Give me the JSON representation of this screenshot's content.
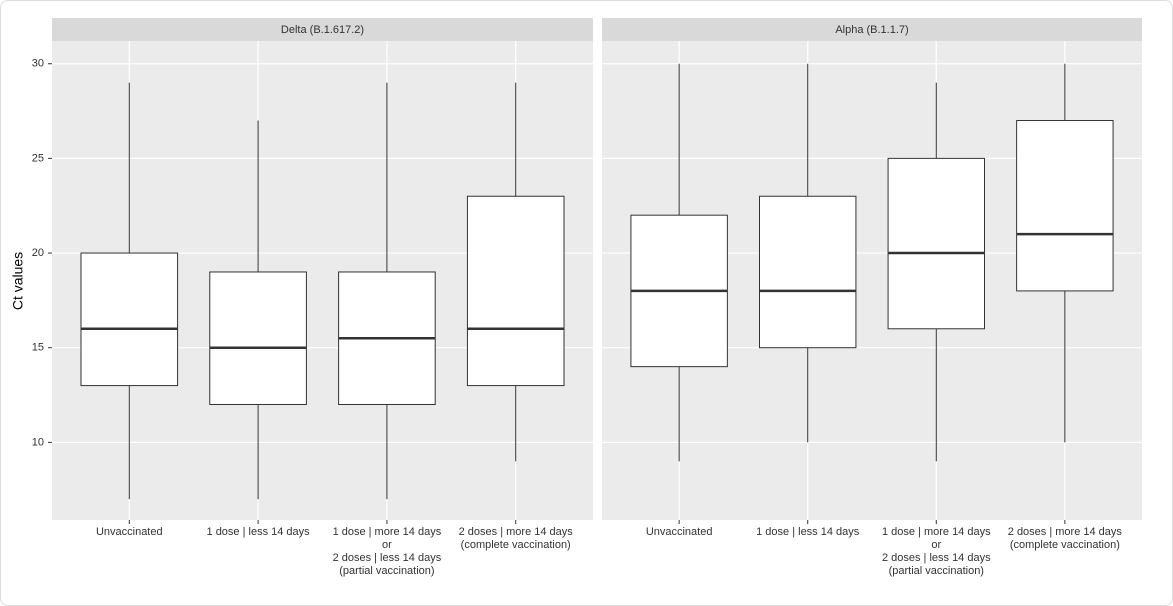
{
  "chart_data": [
    {
      "type": "box",
      "title": "Delta (B.1.617.2)",
      "ylabel": "Ct values",
      "categories": [
        "Unvaccinated",
        "1 dose | less 14 days",
        "1 dose | more 14 days\nor\n2 doses | less 14 days\n(partial vaccination)",
        "2 doses | more 14 days\n(complete vaccination)"
      ],
      "whislo": [
        7,
        7,
        7,
        9
      ],
      "q1": [
        13,
        12,
        12,
        13
      ],
      "median": [
        16,
        15,
        15.5,
        16
      ],
      "q3": [
        20,
        19,
        19,
        23
      ],
      "whishi": [
        29,
        27,
        29,
        29
      ],
      "ylim": [
        5.9,
        31.2
      ],
      "yticks": [
        10,
        15,
        20,
        25,
        30
      ],
      "grid": true
    },
    {
      "type": "box",
      "title": "Alpha (B.1.1.7)",
      "categories": [
        "Unvaccinated",
        "1 dose | less 14 days",
        "1 dose | more 14 days\nor\n2 doses | less 14 days\n(partial vaccination)",
        "2 doses | more 14 days\n(complete vaccination)"
      ],
      "whislo": [
        9,
        10,
        9,
        10
      ],
      "q1": [
        14,
        15,
        16,
        18
      ],
      "median": [
        18,
        18,
        20,
        21
      ],
      "q3": [
        22,
        23,
        25,
        27
      ],
      "whishi": [
        30,
        30,
        29,
        30
      ],
      "ylim": [
        5.9,
        31.2
      ],
      "yticks": [
        10,
        15,
        20,
        25,
        30
      ],
      "grid": true
    }
  ]
}
